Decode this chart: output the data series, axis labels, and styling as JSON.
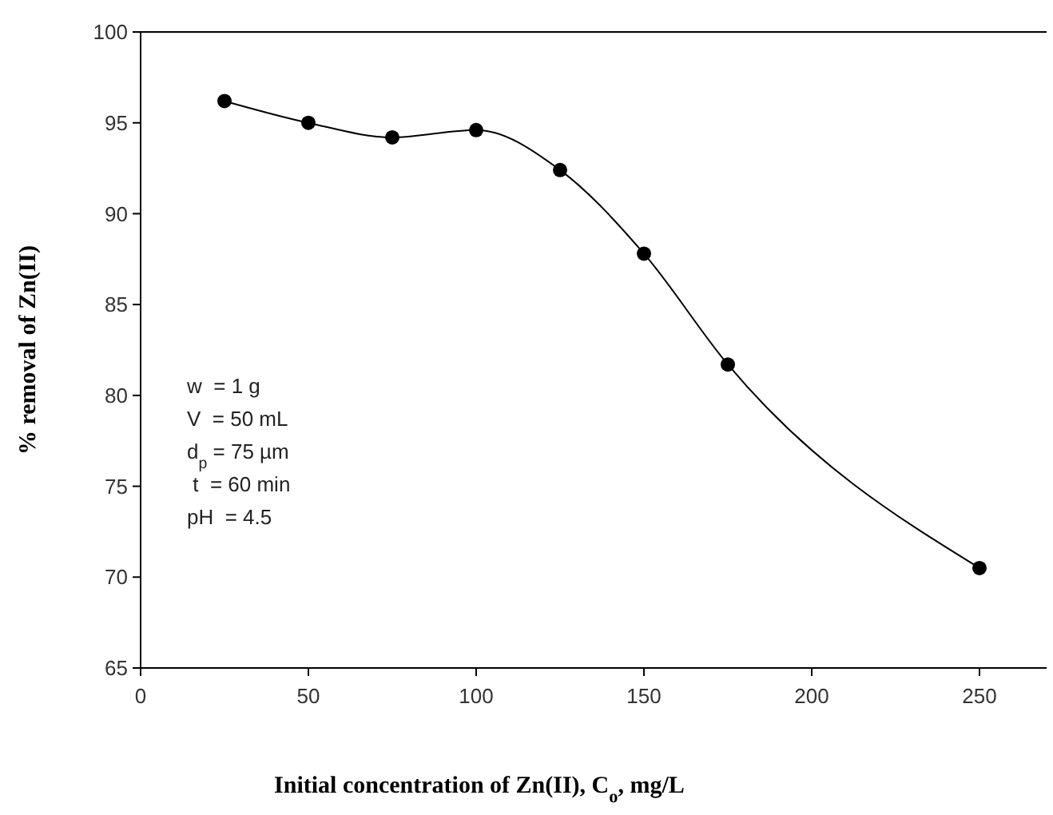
{
  "chart_data": {
    "type": "line",
    "xlabel": "Initial concentration of Zn(II), C$_{o}$, mg/L",
    "ylabel": "% removal of  Zn(II)",
    "x": [
      25,
      50,
      75,
      100,
      125,
      150,
      175,
      250
    ],
    "values": [
      96.2,
      95.0,
      94.2,
      94.6,
      92.4,
      87.8,
      81.7,
      70.5
    ],
    "color": "#000000",
    "marker": "circle",
    "line_style": "solid",
    "xlim": [
      0,
      270
    ],
    "xticks": [
      0,
      50,
      100,
      150,
      200,
      250
    ],
    "ylim": [
      65,
      100
    ],
    "yticks": [
      65,
      70,
      75,
      80,
      85,
      90,
      95,
      100
    ],
    "annotations": [
      "w  = 1 g",
      "V  = 50 mL",
      "d$_{p}$ = 75 µm",
      " t  = 60 min",
      "pH  = 4.5"
    ]
  }
}
